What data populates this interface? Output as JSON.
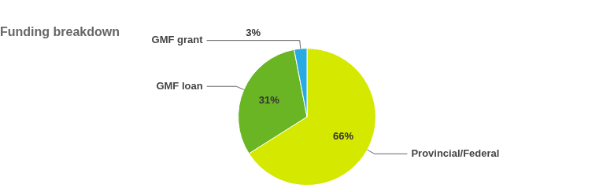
{
  "chart_data": {
    "type": "pie",
    "title": "Funding breakdown",
    "categories": [
      "Provincial/Federal",
      "GMF loan",
      "GMF grant"
    ],
    "values": [
      66,
      31,
      3
    ],
    "value_labels": [
      "66%",
      "31%",
      "3%"
    ],
    "colors": [
      "#d4e800",
      "#6ab524",
      "#29ABE2"
    ],
    "data_labels": true
  }
}
